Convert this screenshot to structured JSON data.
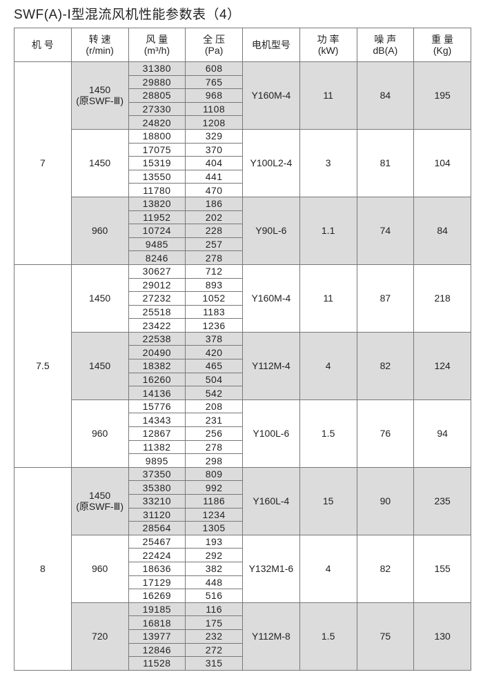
{
  "title": "SWF(A)-Ⅰ型混流风机性能参数表（4）",
  "headers": [
    {
      "l1": "机 号",
      "l2": ""
    },
    {
      "l1": "转 速",
      "l2": "(r/min)"
    },
    {
      "l1": "风 量",
      "l2": "(m³/h)"
    },
    {
      "l1": "全 压",
      "l2": "(Pa)"
    },
    {
      "l1": "电机型号",
      "l2": ""
    },
    {
      "l1": "功 率",
      "l2": "(kW)"
    },
    {
      "l1": "噪 声",
      "l2": "dB(A)"
    },
    {
      "l1": "重 量",
      "l2": "(Kg)"
    }
  ],
  "shade_color": "#dcdcdc",
  "machines": [
    {
      "no": "7",
      "groups": [
        {
          "rpm": "1450",
          "rpm_note": "(原SWF-Ⅲ)",
          "motor": "Y160M-4",
          "power": "11",
          "noise": "84",
          "weight": "195",
          "shaded": true,
          "rows": [
            [
              "31380",
              "608"
            ],
            [
              "29880",
              "765"
            ],
            [
              "28805",
              "968"
            ],
            [
              "27330",
              "1108"
            ],
            [
              "24820",
              "1208"
            ]
          ]
        },
        {
          "rpm": "1450",
          "rpm_note": "",
          "motor": "Y100L2-4",
          "power": "3",
          "noise": "81",
          "weight": "104",
          "shaded": false,
          "rows": [
            [
              "18800",
              "329"
            ],
            [
              "17075",
              "370"
            ],
            [
              "15319",
              "404"
            ],
            [
              "13550",
              "441"
            ],
            [
              "11780",
              "470"
            ]
          ]
        },
        {
          "rpm": "960",
          "rpm_note": "",
          "motor": "Y90L-6",
          "power": "1.1",
          "noise": "74",
          "weight": "84",
          "shaded": true,
          "rows": [
            [
              "13820",
              "186"
            ],
            [
              "11952",
              "202"
            ],
            [
              "10724",
              "228"
            ],
            [
              "9485",
              "257"
            ],
            [
              "8246",
              "278"
            ]
          ]
        }
      ]
    },
    {
      "no": "7.5",
      "groups": [
        {
          "rpm": "1450",
          "rpm_note": "",
          "motor": "Y160M-4",
          "power": "11",
          "noise": "87",
          "weight": "218",
          "shaded": false,
          "rows": [
            [
              "30627",
              "712"
            ],
            [
              "29012",
              "893"
            ],
            [
              "27232",
              "1052"
            ],
            [
              "25518",
              "1183"
            ],
            [
              "23422",
              "1236"
            ]
          ]
        },
        {
          "rpm": "1450",
          "rpm_note": "",
          "motor": "Y112M-4",
          "power": "4",
          "noise": "82",
          "weight": "124",
          "shaded": true,
          "rows": [
            [
              "22538",
              "378"
            ],
            [
              "20490",
              "420"
            ],
            [
              "18382",
              "465"
            ],
            [
              "16260",
              "504"
            ],
            [
              "14136",
              "542"
            ]
          ]
        },
        {
          "rpm": "960",
          "rpm_note": "",
          "motor": "Y100L-6",
          "power": "1.5",
          "noise": "76",
          "weight": "94",
          "shaded": false,
          "rows": [
            [
              "15776",
              "208"
            ],
            [
              "14343",
              "231"
            ],
            [
              "12867",
              "256"
            ],
            [
              "11382",
              "278"
            ],
            [
              "9895",
              "298"
            ]
          ]
        }
      ]
    },
    {
      "no": "8",
      "groups": [
        {
          "rpm": "1450",
          "rpm_note": "(原SWF-Ⅲ)",
          "motor": "Y160L-4",
          "power": "15",
          "noise": "90",
          "weight": "235",
          "shaded": true,
          "rows": [
            [
              "37350",
              "809"
            ],
            [
              "35380",
              "992"
            ],
            [
              "33210",
              "1186"
            ],
            [
              "31120",
              "1234"
            ],
            [
              "28564",
              "1305"
            ]
          ]
        },
        {
          "rpm": "960",
          "rpm_note": "",
          "motor": "Y132M1-6",
          "power": "4",
          "noise": "82",
          "weight": "155",
          "shaded": false,
          "rows": [
            [
              "25467",
              "193"
            ],
            [
              "22424",
              "292"
            ],
            [
              "18636",
              "382"
            ],
            [
              "17129",
              "448"
            ],
            [
              "16269",
              "516"
            ]
          ]
        },
        {
          "rpm": "720",
          "rpm_note": "",
          "motor": "Y112M-8",
          "power": "1.5",
          "noise": "75",
          "weight": "130",
          "shaded": true,
          "rows": [
            [
              "19185",
              "116"
            ],
            [
              "16818",
              "175"
            ],
            [
              "13977",
              "232"
            ],
            [
              "12846",
              "272"
            ],
            [
              "11528",
              "315"
            ]
          ]
        }
      ]
    }
  ]
}
